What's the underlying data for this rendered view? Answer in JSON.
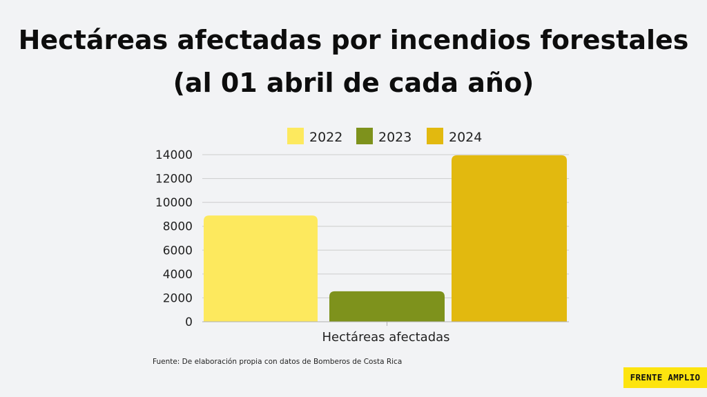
{
  "header": {
    "title_line_1": "Hectáreas afectadas por incendios forestales",
    "title_line_2": "(al 01 abril de cada año)"
  },
  "chart_data": {
    "type": "bar",
    "categories": [
      "Hectáreas afectadas"
    ],
    "series": [
      {
        "name": "2022",
        "values": [
          8900
        ],
        "color": "#fde95e"
      },
      {
        "name": "2023",
        "values": [
          2550
        ],
        "color": "#7e921c"
      },
      {
        "name": "2024",
        "values": [
          13950
        ],
        "color": "#e2b90f"
      }
    ],
    "ylim": [
      0,
      14000
    ],
    "yticks": [
      0,
      2000,
      4000,
      6000,
      8000,
      10000,
      12000,
      14000
    ],
    "xlabel": "",
    "ylabel": "",
    "grid": true,
    "legend": "top"
  },
  "footnote": "Fuente: De elaboración propia con datos de Bomberos de Costa Rica",
  "brand": {
    "label": "FRENTE AMPLIO",
    "color": "#fde40f"
  },
  "colors": {
    "background": "#f2f3f5",
    "gridline": "#cccccc"
  }
}
